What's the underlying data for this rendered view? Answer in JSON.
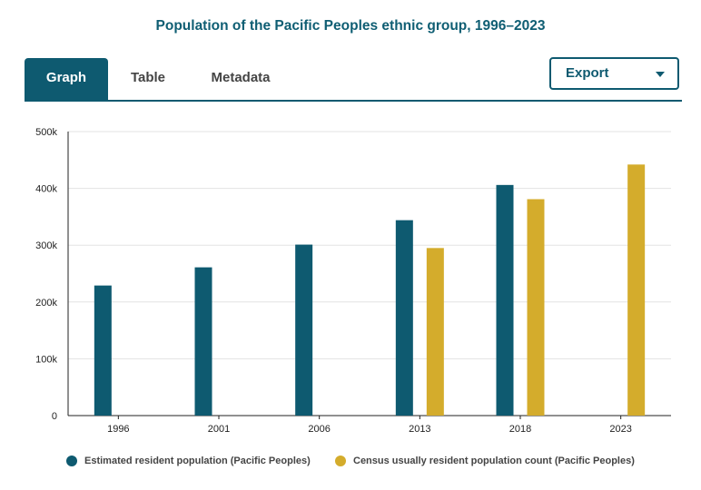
{
  "header": {
    "title": "Population of the Pacific Peoples ethnic group, 1996–2023"
  },
  "tabs": [
    {
      "label": "Graph",
      "active": true
    },
    {
      "label": "Table",
      "active": false
    },
    {
      "label": "Metadata",
      "active": false
    }
  ],
  "export": {
    "label": "Export",
    "icon": "chevron-down-icon"
  },
  "colors": {
    "series1": "#0e5a70",
    "series2": "#d4ac2c",
    "accent": "#0e5a70"
  },
  "chart_data": {
    "type": "bar",
    "title": "Population of the Pacific Peoples ethnic group, 1996–2023",
    "categories": [
      "1996",
      "2001",
      "2006",
      "2013",
      "2018",
      "2023"
    ],
    "series": [
      {
        "name": "Estimated resident population (Pacific Peoples)",
        "color": "#0e5a70",
        "values": [
          229000,
          261000,
          301000,
          344000,
          406000,
          null
        ]
      },
      {
        "name": "Census usually resident population count (Pacific Peoples)",
        "color": "#d4ac2c",
        "values": [
          null,
          null,
          null,
          295000,
          381000,
          442000
        ]
      }
    ],
    "yticks": [
      "0",
      "100k",
      "200k",
      "300k",
      "400k",
      "500k"
    ],
    "ylim": [
      0,
      500000
    ],
    "grid": true,
    "legend": "bottom"
  }
}
